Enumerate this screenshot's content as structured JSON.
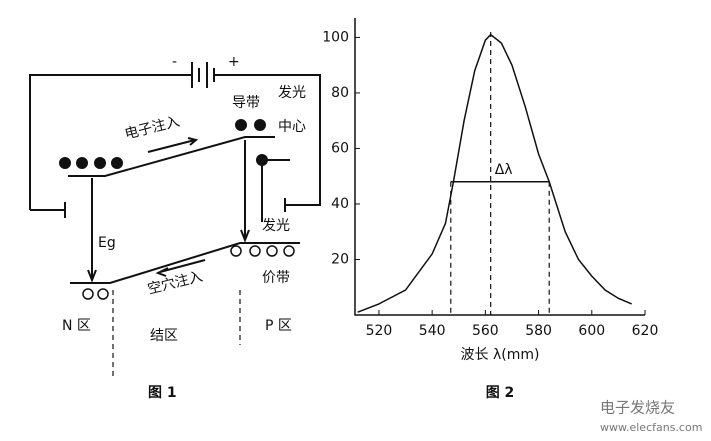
{
  "figure1": {
    "minus": "-",
    "plus": "+",
    "conduction_band": "导带",
    "emission_top": "发光",
    "center": "中心",
    "electron_injection": "电子注入",
    "eg": "Eg",
    "emission": "发光",
    "valence_band": "价带",
    "hole_injection": "空穴注入",
    "n_region": "N 区",
    "junction": "结区",
    "p_region": "P 区",
    "caption": "图 1"
  },
  "chart_data": {
    "type": "line",
    "xlabel": "波长 λ(mm)",
    "caption": "图 2",
    "x": [
      512,
      520,
      530,
      540,
      545,
      548,
      552,
      556,
      560,
      562,
      566,
      570,
      575,
      580,
      584,
      590,
      595,
      600,
      605,
      610,
      615
    ],
    "values": [
      1,
      4,
      9,
      22,
      33,
      48,
      70,
      88,
      99,
      101,
      98,
      90,
      75,
      58,
      48,
      30,
      20,
      14,
      9,
      6,
      4
    ],
    "color": "#111111",
    "xlim": [
      511,
      620
    ],
    "xticks": [
      520,
      540,
      560,
      580,
      600,
      620
    ],
    "ylim": [
      0,
      107
    ],
    "yticks": [
      20,
      40,
      60,
      80,
      100
    ],
    "peak_x": 562,
    "fwhm": {
      "x": [
        547,
        584
      ],
      "y": 48,
      "label": "Δλ"
    }
  },
  "watermark": {
    "name": "电子发烧友",
    "url": "www.elecfans.com"
  }
}
